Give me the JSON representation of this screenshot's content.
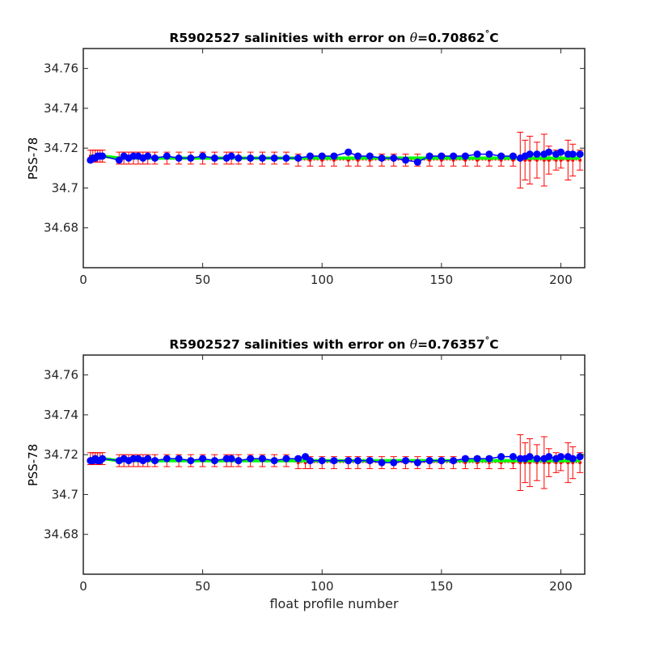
{
  "chart_data": [
    {
      "type": "scatter",
      "title_prefix": "R5902527 salinities with error on ",
      "title_symbol": "θ",
      "title_value": "=0.70862",
      "title_degree": "°",
      "title_unit": "C",
      "xlabel": "",
      "ylabel": "PSS-78",
      "xlim": [
        0,
        210
      ],
      "ylim": [
        34.66,
        34.77
      ],
      "xticks": [
        0,
        50,
        100,
        150,
        200
      ],
      "xtick_labels": [
        "0",
        "50",
        "100",
        "150",
        "200"
      ],
      "yticks": [
        34.68,
        34.7,
        34.72,
        34.74,
        34.76
      ],
      "ytick_labels": [
        "34.68",
        "34.7",
        "34.72",
        "34.74",
        "34.76"
      ],
      "grid": false,
      "series": [
        {
          "role": "float salinity",
          "color": "#0000ff",
          "x": [
            3,
            4,
            5,
            6,
            7,
            8,
            15,
            17,
            19,
            21,
            23,
            25,
            27,
            30,
            35,
            40,
            45,
            50,
            55,
            60,
            62,
            65,
            70,
            75,
            80,
            85,
            90,
            95,
            100,
            105,
            111,
            115,
            120,
            125,
            130,
            135,
            140,
            145,
            150,
            155,
            160,
            165,
            170,
            175,
            180,
            183,
            185,
            187,
            190,
            193,
            195,
            198,
            200,
            203,
            205,
            208
          ],
          "y": [
            34.714,
            34.715,
            34.715,
            34.716,
            34.716,
            34.716,
            34.714,
            34.716,
            34.715,
            34.716,
            34.716,
            34.715,
            34.716,
            34.715,
            34.716,
            34.715,
            34.715,
            34.716,
            34.715,
            34.715,
            34.716,
            34.715,
            34.715,
            34.715,
            34.715,
            34.715,
            34.715,
            34.716,
            34.716,
            34.716,
            34.718,
            34.716,
            34.716,
            34.715,
            34.715,
            34.714,
            34.713,
            34.716,
            34.716,
            34.716,
            34.716,
            34.717,
            34.717,
            34.716,
            34.716,
            34.715,
            34.716,
            34.717,
            34.717,
            34.717,
            34.718,
            34.717,
            34.718,
            34.717,
            34.717,
            34.717
          ]
        },
        {
          "role": "mapped salinity with error bars",
          "color": "#ff0000",
          "x": [
            3,
            4,
            5,
            6,
            7,
            8,
            15,
            17,
            19,
            21,
            23,
            25,
            27,
            30,
            35,
            40,
            45,
            50,
            55,
            60,
            62,
            65,
            70,
            75,
            80,
            85,
            90,
            95,
            100,
            105,
            111,
            115,
            120,
            125,
            130,
            135,
            140,
            145,
            150,
            155,
            160,
            165,
            170,
            175,
            180,
            183,
            185,
            187,
            190,
            193,
            195,
            198,
            200,
            203,
            205,
            208
          ],
          "y": [
            34.716,
            34.716,
            34.716,
            34.716,
            34.716,
            34.716,
            34.715,
            34.715,
            34.715,
            34.715,
            34.715,
            34.715,
            34.715,
            34.715,
            34.715,
            34.715,
            34.715,
            34.715,
            34.715,
            34.715,
            34.715,
            34.715,
            34.715,
            34.715,
            34.715,
            34.715,
            34.714,
            34.714,
            34.714,
            34.714,
            34.714,
            34.714,
            34.714,
            34.714,
            34.714,
            34.714,
            34.714,
            34.714,
            34.714,
            34.714,
            34.714,
            34.714,
            34.714,
            34.714,
            34.714,
            34.714,
            34.714,
            34.714,
            34.714,
            34.714,
            34.714,
            34.714,
            34.714,
            34.714,
            34.714,
            34.714
          ],
          "err": [
            0.003,
            0.003,
            0.003,
            0.003,
            0.003,
            0.003,
            0.003,
            0.003,
            0.003,
            0.003,
            0.003,
            0.003,
            0.003,
            0.003,
            0.003,
            0.003,
            0.003,
            0.003,
            0.003,
            0.003,
            0.003,
            0.003,
            0.003,
            0.003,
            0.003,
            0.003,
            0.003,
            0.003,
            0.003,
            0.003,
            0.003,
            0.003,
            0.003,
            0.003,
            0.003,
            0.003,
            0.003,
            0.003,
            0.003,
            0.003,
            0.003,
            0.003,
            0.003,
            0.003,
            0.003,
            0.014,
            0.01,
            0.012,
            0.009,
            0.013,
            0.007,
            0.005,
            0.004,
            0.01,
            0.008,
            0.005
          ]
        },
        {
          "role": "calibrated salinity",
          "color": "#00ff00",
          "x": [
            3,
            4,
            5,
            6,
            7,
            8,
            15,
            17,
            19,
            21,
            23,
            25,
            27,
            30,
            35,
            40,
            45,
            50,
            55,
            60,
            62,
            65,
            70,
            75,
            80,
            85,
            90,
            95,
            100,
            105,
            111,
            115,
            120,
            125,
            130,
            135,
            140,
            145,
            150,
            155,
            160,
            165,
            170,
            175,
            180,
            183,
            185,
            187,
            190,
            193,
            195,
            198,
            200,
            203,
            205,
            208
          ],
          "y": [
            34.716,
            34.716,
            34.716,
            34.716,
            34.716,
            34.716,
            34.715,
            34.715,
            34.715,
            34.715,
            34.715,
            34.715,
            34.715,
            34.715,
            34.715,
            34.715,
            34.715,
            34.715,
            34.715,
            34.715,
            34.715,
            34.715,
            34.715,
            34.715,
            34.715,
            34.715,
            34.715,
            34.715,
            34.715,
            34.715,
            34.715,
            34.715,
            34.715,
            34.715,
            34.715,
            34.715,
            34.715,
            34.715,
            34.715,
            34.715,
            34.715,
            34.715,
            34.715,
            34.715,
            34.715,
            34.715,
            34.715,
            34.715,
            34.715,
            34.715,
            34.715,
            34.715,
            34.715,
            34.715,
            34.715,
            34.715
          ]
        }
      ]
    },
    {
      "type": "scatter",
      "title_prefix": "R5902527 salinities with error on ",
      "title_symbol": "θ",
      "title_value": "=0.76357",
      "title_degree": "°",
      "title_unit": "C",
      "xlabel": "float profile number",
      "ylabel": "PSS-78",
      "xlim": [
        0,
        210
      ],
      "ylim": [
        34.66,
        34.77
      ],
      "xticks": [
        0,
        50,
        100,
        150,
        200
      ],
      "xtick_labels": [
        "0",
        "50",
        "100",
        "150",
        "200"
      ],
      "yticks": [
        34.68,
        34.7,
        34.72,
        34.74,
        34.76
      ],
      "ytick_labels": [
        "34.68",
        "34.7",
        "34.72",
        "34.74",
        "34.76"
      ],
      "grid": false,
      "series": [
        {
          "role": "float salinity",
          "color": "#0000ff",
          "x": [
            3,
            4,
            5,
            6,
            7,
            8,
            15,
            17,
            19,
            21,
            23,
            25,
            27,
            30,
            35,
            40,
            45,
            50,
            55,
            60,
            62,
            65,
            70,
            75,
            80,
            85,
            90,
            93,
            95,
            100,
            105,
            111,
            115,
            120,
            125,
            130,
            135,
            140,
            145,
            150,
            155,
            160,
            165,
            170,
            175,
            180,
            183,
            185,
            187,
            190,
            193,
            195,
            198,
            200,
            203,
            205,
            208
          ],
          "y": [
            34.717,
            34.717,
            34.718,
            34.717,
            34.717,
            34.718,
            34.717,
            34.718,
            34.717,
            34.718,
            34.718,
            34.717,
            34.718,
            34.717,
            34.718,
            34.718,
            34.717,
            34.718,
            34.717,
            34.718,
            34.718,
            34.717,
            34.718,
            34.718,
            34.717,
            34.718,
            34.718,
            34.719,
            34.717,
            34.717,
            34.717,
            34.717,
            34.717,
            34.717,
            34.716,
            34.716,
            34.717,
            34.716,
            34.717,
            34.717,
            34.717,
            34.718,
            34.718,
            34.718,
            34.719,
            34.719,
            34.718,
            34.718,
            34.719,
            34.718,
            34.718,
            34.719,
            34.718,
            34.719,
            34.719,
            34.718,
            34.719
          ]
        },
        {
          "role": "mapped salinity with error bars",
          "color": "#ff0000",
          "x": [
            3,
            4,
            5,
            6,
            7,
            8,
            15,
            17,
            19,
            21,
            23,
            25,
            27,
            30,
            35,
            40,
            45,
            50,
            55,
            60,
            62,
            65,
            70,
            75,
            80,
            85,
            90,
            93,
            95,
            100,
            105,
            111,
            115,
            120,
            125,
            130,
            135,
            140,
            145,
            150,
            155,
            160,
            165,
            170,
            175,
            180,
            183,
            185,
            187,
            190,
            193,
            195,
            198,
            200,
            203,
            205,
            208
          ],
          "y": [
            34.718,
            34.718,
            34.718,
            34.718,
            34.718,
            34.718,
            34.717,
            34.717,
            34.717,
            34.717,
            34.717,
            34.717,
            34.717,
            34.717,
            34.717,
            34.717,
            34.717,
            34.717,
            34.717,
            34.717,
            34.717,
            34.717,
            34.717,
            34.717,
            34.717,
            34.717,
            34.716,
            34.716,
            34.716,
            34.716,
            34.716,
            34.716,
            34.716,
            34.716,
            34.716,
            34.716,
            34.716,
            34.716,
            34.716,
            34.716,
            34.716,
            34.716,
            34.716,
            34.716,
            34.716,
            34.716,
            34.716,
            34.716,
            34.716,
            34.716,
            34.716,
            34.716,
            34.716,
            34.716,
            34.716,
            34.716,
            34.716
          ],
          "err": [
            0.003,
            0.003,
            0.003,
            0.003,
            0.003,
            0.003,
            0.003,
            0.003,
            0.003,
            0.003,
            0.003,
            0.003,
            0.003,
            0.003,
            0.003,
            0.003,
            0.003,
            0.003,
            0.003,
            0.003,
            0.003,
            0.003,
            0.003,
            0.003,
            0.003,
            0.003,
            0.003,
            0.003,
            0.003,
            0.003,
            0.003,
            0.003,
            0.003,
            0.003,
            0.003,
            0.003,
            0.003,
            0.003,
            0.003,
            0.003,
            0.003,
            0.003,
            0.003,
            0.003,
            0.003,
            0.003,
            0.014,
            0.01,
            0.012,
            0.009,
            0.013,
            0.007,
            0.005,
            0.004,
            0.01,
            0.008,
            0.005
          ]
        },
        {
          "role": "calibrated salinity",
          "color": "#00ff00",
          "x": [
            3,
            4,
            5,
            6,
            7,
            8,
            15,
            17,
            19,
            21,
            23,
            25,
            27,
            30,
            35,
            40,
            45,
            50,
            55,
            60,
            62,
            65,
            70,
            75,
            80,
            85,
            90,
            93,
            95,
            100,
            105,
            111,
            115,
            120,
            125,
            130,
            135,
            140,
            145,
            150,
            155,
            160,
            165,
            170,
            175,
            180,
            183,
            185,
            187,
            190,
            193,
            195,
            198,
            200,
            203,
            205,
            208
          ],
          "y": [
            34.718,
            34.718,
            34.718,
            34.718,
            34.718,
            34.718,
            34.717,
            34.717,
            34.717,
            34.717,
            34.717,
            34.717,
            34.717,
            34.717,
            34.717,
            34.717,
            34.717,
            34.717,
            34.717,
            34.717,
            34.717,
            34.717,
            34.717,
            34.717,
            34.717,
            34.717,
            34.717,
            34.717,
            34.717,
            34.717,
            34.717,
            34.717,
            34.717,
            34.717,
            34.717,
            34.717,
            34.717,
            34.717,
            34.717,
            34.717,
            34.717,
            34.717,
            34.717,
            34.717,
            34.717,
            34.717,
            34.717,
            34.717,
            34.717,
            34.717,
            34.717,
            34.717,
            34.717,
            34.717,
            34.717,
            34.717,
            34.717
          ]
        }
      ]
    }
  ]
}
